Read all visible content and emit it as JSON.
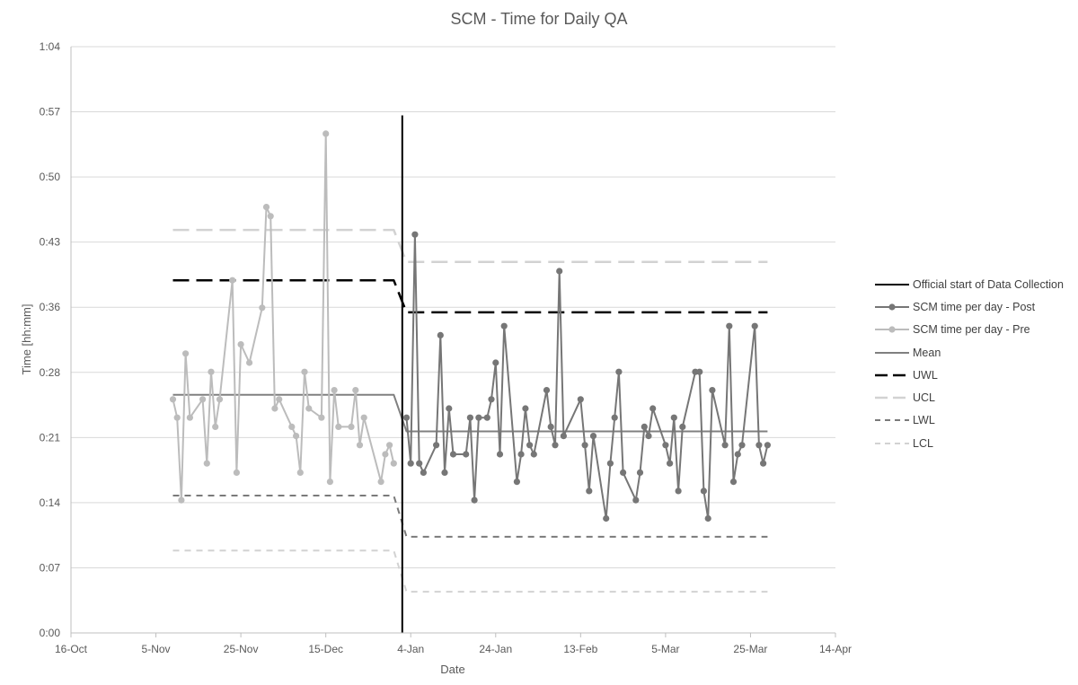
{
  "chart_data": {
    "type": "line",
    "title": "SCM - Time for Daily QA",
    "xlabel": "Date",
    "ylabel": "Time [hh:mm]",
    "x_axis": {
      "min": "2017-10-16",
      "max": "2018-04-14",
      "ticks": [
        "16-Oct",
        "5-Nov",
        "25-Nov",
        "15-Dec",
        "4-Jan",
        "24-Jan",
        "13-Feb",
        "5-Mar",
        "25-Mar",
        "14-Apr"
      ]
    },
    "y_axis": {
      "min_minutes": 0,
      "max_minutes": 64,
      "ticks": [
        "0:00",
        "0:07",
        "0:14",
        "0:21",
        "0:28",
        "0:36",
        "0:43",
        "0:50",
        "0:57",
        "1:04"
      ]
    },
    "grid": true,
    "legend_position": "right",
    "series": [
      {
        "name": "Official start of Data Collection",
        "style": "solid-vertical",
        "color": "#000000",
        "points": [
          [
            "2018-01-02",
            0
          ],
          [
            "2018-01-02",
            56.5
          ]
        ]
      },
      {
        "name": "SCM time per day - Post",
        "style": "line-markers",
        "color": "#767676",
        "points": [
          [
            "2018-01-03",
            23.5
          ],
          [
            "2018-01-04",
            18.5
          ],
          [
            "2018-01-05",
            43.5
          ],
          [
            "2018-01-06",
            18.5
          ],
          [
            "2018-01-07",
            17.5
          ],
          [
            "2018-01-10",
            20.5
          ],
          [
            "2018-01-11",
            32.5
          ],
          [
            "2018-01-12",
            17.5
          ],
          [
            "2018-01-13",
            24.5
          ],
          [
            "2018-01-14",
            19.5
          ],
          [
            "2018-01-17",
            19.5
          ],
          [
            "2018-01-18",
            23.5
          ],
          [
            "2018-01-19",
            14.5
          ],
          [
            "2018-01-20",
            23.5
          ],
          [
            "2018-01-22",
            23.5
          ],
          [
            "2018-01-23",
            25.5
          ],
          [
            "2018-01-24",
            29.5
          ],
          [
            "2018-01-25",
            19.5
          ],
          [
            "2018-01-26",
            33.5
          ],
          [
            "2018-01-29",
            16.5
          ],
          [
            "2018-01-30",
            19.5
          ],
          [
            "2018-01-31",
            24.5
          ],
          [
            "2018-02-01",
            20.5
          ],
          [
            "2018-02-02",
            19.5
          ],
          [
            "2018-02-05",
            26.5
          ],
          [
            "2018-02-06",
            22.5
          ],
          [
            "2018-02-07",
            20.5
          ],
          [
            "2018-02-08",
            39.5
          ],
          [
            "2018-02-09",
            21.5
          ],
          [
            "2018-02-13",
            25.5
          ],
          [
            "2018-02-14",
            20.5
          ],
          [
            "2018-02-15",
            15.5
          ],
          [
            "2018-02-16",
            21.5
          ],
          [
            "2018-02-19",
            12.5
          ],
          [
            "2018-02-20",
            18.5
          ],
          [
            "2018-02-21",
            23.5
          ],
          [
            "2018-02-22",
            28.5
          ],
          [
            "2018-02-23",
            17.5
          ],
          [
            "2018-02-26",
            14.5
          ],
          [
            "2018-02-27",
            17.5
          ],
          [
            "2018-02-28",
            22.5
          ],
          [
            "2018-03-01",
            21.5
          ],
          [
            "2018-03-02",
            24.5
          ],
          [
            "2018-03-05",
            20.5
          ],
          [
            "2018-03-06",
            18.5
          ],
          [
            "2018-03-07",
            23.5
          ],
          [
            "2018-03-08",
            15.5
          ],
          [
            "2018-03-09",
            22.5
          ],
          [
            "2018-03-12",
            28.5
          ],
          [
            "2018-03-13",
            28.5
          ],
          [
            "2018-03-14",
            15.5
          ],
          [
            "2018-03-15",
            12.5
          ],
          [
            "2018-03-16",
            26.5
          ],
          [
            "2018-03-19",
            20.5
          ],
          [
            "2018-03-20",
            33.5
          ],
          [
            "2018-03-21",
            16.5
          ],
          [
            "2018-03-22",
            19.5
          ],
          [
            "2018-03-23",
            20.5
          ],
          [
            "2018-03-26",
            33.5
          ],
          [
            "2018-03-27",
            20.5
          ],
          [
            "2018-03-28",
            18.5
          ],
          [
            "2018-03-29",
            20.5
          ]
        ]
      },
      {
        "name": "SCM time per day - Pre",
        "style": "line-markers",
        "color": "#bcbcbc",
        "points": [
          [
            "2017-11-09",
            25.5
          ],
          [
            "2017-11-10",
            23.5
          ],
          [
            "2017-11-11",
            14.5
          ],
          [
            "2017-11-12",
            30.5
          ],
          [
            "2017-11-13",
            23.5
          ],
          [
            "2017-11-16",
            25.5
          ],
          [
            "2017-11-17",
            18.5
          ],
          [
            "2017-11-18",
            28.5
          ],
          [
            "2017-11-19",
            22.5
          ],
          [
            "2017-11-20",
            25.5
          ],
          [
            "2017-11-23",
            38.5
          ],
          [
            "2017-11-24",
            17.5
          ],
          [
            "2017-11-25",
            31.5
          ],
          [
            "2017-11-27",
            29.5
          ],
          [
            "2017-11-30",
            35.5
          ],
          [
            "2017-12-01",
            46.5
          ],
          [
            "2017-12-02",
            45.5
          ],
          [
            "2017-12-03",
            24.5
          ],
          [
            "2017-12-04",
            25.5
          ],
          [
            "2017-12-07",
            22.5
          ],
          [
            "2017-12-08",
            21.5
          ],
          [
            "2017-12-09",
            17.5
          ],
          [
            "2017-12-10",
            28.5
          ],
          [
            "2017-12-11",
            24.5
          ],
          [
            "2017-12-14",
            23.5
          ],
          [
            "2017-12-15",
            54.5
          ],
          [
            "2017-12-16",
            16.5
          ],
          [
            "2017-12-17",
            26.5
          ],
          [
            "2017-12-18",
            22.5
          ],
          [
            "2017-12-21",
            22.5
          ],
          [
            "2017-12-22",
            26.5
          ],
          [
            "2017-12-23",
            20.5
          ],
          [
            "2017-12-24",
            23.5
          ],
          [
            "2017-12-28",
            16.5
          ],
          [
            "2017-12-29",
            19.5
          ],
          [
            "2017-12-30",
            20.5
          ],
          [
            "2017-12-31",
            18.5
          ]
        ]
      },
      {
        "name": "Mean",
        "style": "solid",
        "color": "#808080",
        "points": [
          [
            "2017-11-09",
            26
          ],
          [
            "2017-12-31",
            26
          ],
          [
            "2018-01-03",
            22
          ],
          [
            "2018-03-29",
            22
          ]
        ]
      },
      {
        "name": "UWL",
        "style": "long-dash",
        "color": "#000000",
        "points": [
          [
            "2017-11-09",
            38.5
          ],
          [
            "2017-12-31",
            38.5
          ],
          [
            "2018-01-03",
            35
          ],
          [
            "2018-03-29",
            35
          ]
        ]
      },
      {
        "name": "UCL",
        "style": "long-dash",
        "color": "#d2d2d2",
        "points": [
          [
            "2017-11-09",
            44
          ],
          [
            "2017-12-31",
            44
          ],
          [
            "2018-01-03",
            40.5
          ],
          [
            "2018-03-29",
            40.5
          ]
        ]
      },
      {
        "name": "LWL",
        "style": "short-dash",
        "color": "#7a7a7a",
        "points": [
          [
            "2017-11-09",
            15
          ],
          [
            "2017-12-31",
            15
          ],
          [
            "2018-01-03",
            10.5
          ],
          [
            "2018-03-29",
            10.5
          ]
        ]
      },
      {
        "name": "LCL",
        "style": "short-dash",
        "color": "#d2d2d2",
        "points": [
          [
            "2017-11-09",
            9
          ],
          [
            "2017-12-31",
            9
          ],
          [
            "2018-01-03",
            4.5
          ],
          [
            "2018-03-29",
            4.5
          ]
        ]
      }
    ]
  }
}
